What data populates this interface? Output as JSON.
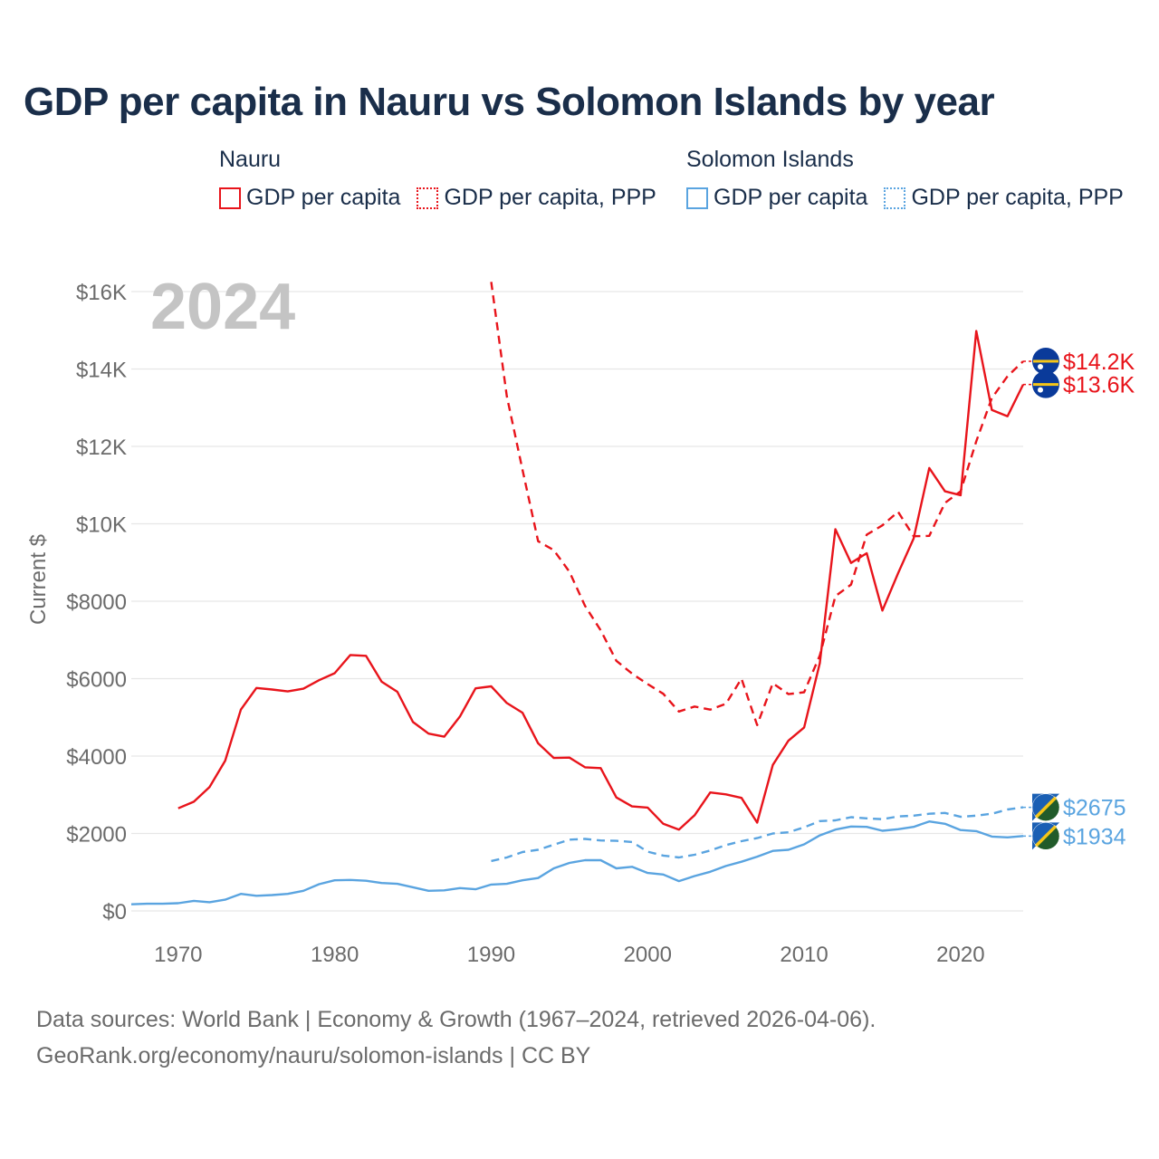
{
  "chart_data": {
    "type": "line",
    "title": "GDP per capita in Nauru vs Solomon Islands by year",
    "ylabel": "Current $",
    "xlabel": "",
    "xlim": [
      1967,
      2024
    ],
    "ylim": [
      0,
      16000
    ],
    "grid": true,
    "year_label": "2024",
    "x_ticks": [
      1970,
      1980,
      1990,
      2000,
      2010,
      2020
    ],
    "y_ticks": [
      0,
      2000,
      4000,
      6000,
      8000,
      10000,
      12000,
      14000,
      16000
    ],
    "y_tick_labels": [
      "$0",
      "$2000",
      "$4000",
      "$6000",
      "$8000",
      "$10K",
      "$12K",
      "$14K",
      "$16K"
    ],
    "legend": {
      "groups": [
        {
          "country": "Nauru",
          "items": [
            "GDP per capita",
            "GDP per capita, PPP"
          ],
          "color": "#e8141b"
        },
        {
          "country": "Solomon Islands",
          "items": [
            "GDP per capita",
            "GDP per capita, PPP"
          ],
          "color": "#5aa4e0"
        }
      ]
    },
    "series": [
      {
        "name": "Nauru GDP per capita",
        "color": "#e8141b",
        "dash": false,
        "x": [
          1970,
          1971,
          1972,
          1973,
          1974,
          1975,
          1976,
          1977,
          1978,
          1979,
          1980,
          1981,
          1982,
          1983,
          1984,
          1985,
          1986,
          1987,
          1988,
          1989,
          1990,
          1991,
          1992,
          1993,
          1994,
          1995,
          1996,
          1997,
          1998,
          1999,
          2000,
          2001,
          2002,
          2003,
          2004,
          2005,
          2006,
          2007,
          2008,
          2009,
          2010,
          2011,
          2012,
          2013,
          2014,
          2015,
          2016,
          2017,
          2018,
          2019,
          2020,
          2021,
          2022,
          2023,
          2024
        ],
        "values": [
          2650,
          2820,
          3200,
          3880,
          5200,
          5760,
          5720,
          5670,
          5740,
          5960,
          6140,
          6610,
          6590,
          5920,
          5660,
          4880,
          4580,
          4500,
          5020,
          5750,
          5800,
          5370,
          5120,
          4330,
          3950,
          3960,
          3710,
          3690,
          2930,
          2700,
          2670,
          2250,
          2100,
          2470,
          3060,
          3010,
          2920,
          2280,
          3770,
          4400,
          4740,
          6400,
          9860,
          8990,
          9240,
          7760,
          8720,
          9620,
          11440,
          10840,
          10740,
          14980,
          12940,
          12780,
          13600
        ]
      },
      {
        "name": "Nauru GDP per capita, PPP",
        "color": "#e8141b",
        "dash": true,
        "x": [
          1990,
          1991,
          1992,
          1993,
          1994,
          1995,
          1996,
          1997,
          1998,
          1999,
          2000,
          2001,
          2002,
          2003,
          2004,
          2005,
          2006,
          2007,
          2008,
          2009,
          2010,
          2011,
          2012,
          2013,
          2014,
          2015,
          2016,
          2017,
          2018,
          2019,
          2020,
          2021,
          2022,
          2023,
          2024
        ],
        "values": [
          16250,
          13300,
          11400,
          9550,
          9320,
          8760,
          7880,
          7250,
          6460,
          6130,
          5860,
          5610,
          5150,
          5280,
          5200,
          5350,
          6000,
          4800,
          5880,
          5600,
          5650,
          6600,
          8130,
          8430,
          9720,
          9960,
          10310,
          9680,
          9690,
          10540,
          10840,
          12130,
          13250,
          13810,
          14200
        ]
      },
      {
        "name": "Solomon Islands GDP per capita",
        "color": "#5aa4e0",
        "dash": false,
        "x": [
          1967,
          1968,
          1969,
          1970,
          1971,
          1972,
          1973,
          1974,
          1975,
          1976,
          1977,
          1978,
          1979,
          1980,
          1981,
          1982,
          1983,
          1984,
          1985,
          1986,
          1987,
          1988,
          1989,
          1990,
          1991,
          1992,
          1993,
          1994,
          1995,
          1996,
          1997,
          1998,
          1999,
          2000,
          2001,
          2002,
          2003,
          2004,
          2005,
          2006,
          2007,
          2008,
          2009,
          2010,
          2011,
          2012,
          2013,
          2014,
          2015,
          2016,
          2017,
          2018,
          2019,
          2020,
          2021,
          2022,
          2023,
          2024
        ],
        "values": [
          170,
          185,
          185,
          200,
          260,
          225,
          290,
          440,
          390,
          410,
          440,
          520,
          690,
          790,
          800,
          780,
          720,
          700,
          610,
          520,
          530,
          590,
          560,
          680,
          700,
          790,
          850,
          1100,
          1240,
          1310,
          1310,
          1100,
          1140,
          980,
          940,
          770,
          900,
          1010,
          1160,
          1270,
          1400,
          1550,
          1580,
          1720,
          1950,
          2100,
          2180,
          2170,
          2070,
          2110,
          2170,
          2310,
          2250,
          2090,
          2060,
          1920,
          1900,
          1934
        ]
      },
      {
        "name": "Solomon Islands GDP per capita, PPP",
        "color": "#5aa4e0",
        "dash": true,
        "x": [
          1990,
          1991,
          1992,
          1993,
          1994,
          1995,
          1996,
          1997,
          1998,
          1999,
          2000,
          2001,
          2002,
          2003,
          2004,
          2005,
          2006,
          2007,
          2008,
          2009,
          2010,
          2011,
          2012,
          2013,
          2014,
          2015,
          2016,
          2017,
          2018,
          2019,
          2020,
          2021,
          2022,
          2023,
          2024
        ],
        "values": [
          1290,
          1380,
          1520,
          1580,
          1710,
          1840,
          1860,
          1820,
          1810,
          1780,
          1530,
          1430,
          1380,
          1450,
          1560,
          1700,
          1800,
          1880,
          2000,
          2030,
          2160,
          2320,
          2340,
          2420,
          2390,
          2370,
          2440,
          2460,
          2510,
          2530,
          2430,
          2460,
          2510,
          2620,
          2675
        ]
      }
    ],
    "end_labels": [
      {
        "text": "$14.2K",
        "value": 14200,
        "flag": "nauru-flag-icon",
        "color": "#e8141b"
      },
      {
        "text": "$13.6K",
        "value": 13600,
        "flag": "nauru-flag-icon",
        "color": "#e8141b"
      },
      {
        "text": "$2675",
        "value": 2675,
        "flag": "solomon-islands-flag-icon",
        "color": "#5aa4e0"
      },
      {
        "text": "$1934",
        "value": 1934,
        "flag": "solomon-islands-flag-icon",
        "color": "#5aa4e0"
      }
    ]
  },
  "footer": {
    "line1": "Data sources: World Bank | Economy & Growth (1967–2024, retrieved 2026-04-06).",
    "line2": "GeoRank.org/economy/nauru/solomon-islands | CC BY"
  }
}
